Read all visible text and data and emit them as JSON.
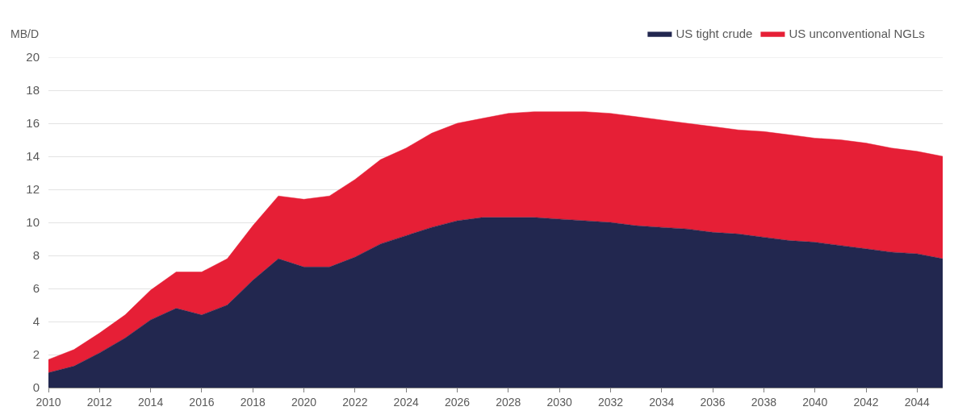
{
  "chart_data": {
    "type": "area",
    "ylabel": "MB/D",
    "stacked": true,
    "x": [
      2010,
      2011,
      2012,
      2013,
      2014,
      2015,
      2016,
      2017,
      2018,
      2019,
      2020,
      2021,
      2022,
      2023,
      2024,
      2025,
      2026,
      2027,
      2028,
      2029,
      2030,
      2031,
      2032,
      2033,
      2034,
      2035,
      2036,
      2037,
      2038,
      2039,
      2040,
      2041,
      2042,
      2043,
      2044,
      2045
    ],
    "series": [
      {
        "name": "US tight crude",
        "color": "#22274f",
        "values": [
          0.9,
          1.3,
          2.1,
          3.0,
          4.1,
          4.8,
          4.4,
          5.0,
          6.5,
          7.8,
          7.3,
          7.3,
          7.9,
          8.7,
          9.2,
          9.7,
          10.1,
          10.3,
          10.3,
          10.3,
          10.2,
          10.1,
          10.0,
          9.8,
          9.7,
          9.6,
          9.4,
          9.3,
          9.1,
          8.9,
          8.8,
          8.6,
          8.4,
          8.2,
          8.1,
          7.8
        ]
      },
      {
        "name": "US unconventional NGLs",
        "color": "#e61f36",
        "values": [
          0.8,
          1.0,
          1.2,
          1.4,
          1.8,
          2.2,
          2.6,
          2.8,
          3.3,
          3.8,
          4.1,
          4.3,
          4.7,
          5.1,
          5.3,
          5.7,
          5.9,
          6.0,
          6.3,
          6.4,
          6.5,
          6.6,
          6.6,
          6.6,
          6.5,
          6.4,
          6.4,
          6.3,
          6.4,
          6.4,
          6.3,
          6.4,
          6.4,
          6.3,
          6.2,
          6.2
        ]
      }
    ],
    "xlim": [
      2010,
      2045
    ],
    "xticks": [
      2010,
      2012,
      2014,
      2016,
      2018,
      2020,
      2022,
      2024,
      2026,
      2028,
      2030,
      2032,
      2034,
      2036,
      2038,
      2040,
      2042,
      2044
    ],
    "ylim": [
      0,
      20
    ],
    "yticks": [
      0,
      2,
      4,
      6,
      8,
      10,
      12,
      14,
      16,
      18,
      20
    ],
    "grid": "y",
    "legend": "top right"
  }
}
